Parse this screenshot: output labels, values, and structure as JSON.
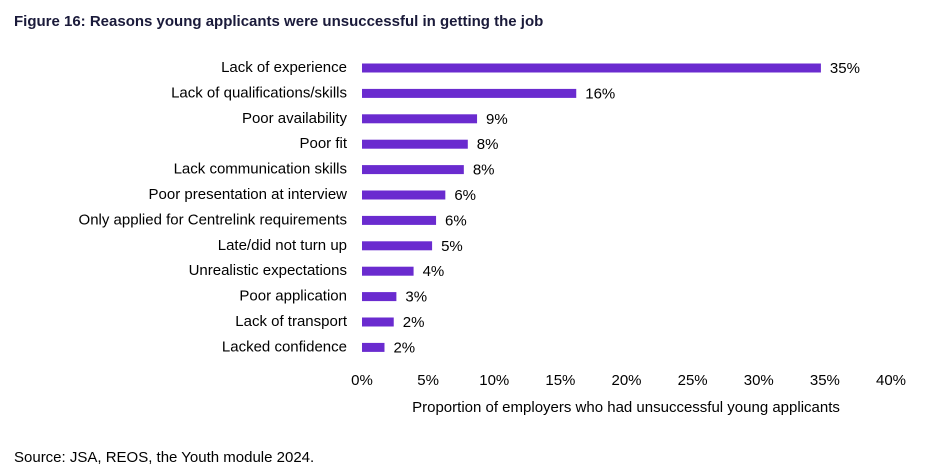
{
  "chart_data": {
    "type": "bar",
    "orientation": "horizontal",
    "title": "Figure 16: Reasons young applicants were unsuccessful in getting the job",
    "categories": [
      "Lack of experience",
      "Lack of qualifications/skills",
      "Poor availability",
      "Poor fit",
      "Lack communication skills",
      "Poor presentation at interview",
      "Only applied for Centrelink requirements",
      "Late/did not turn up",
      "Unrealistic expectations",
      "Poor application",
      "Lack of transport",
      "Lacked confidence"
    ],
    "values": [
      34.7,
      16.2,
      8.7,
      8.0,
      7.7,
      6.3,
      5.6,
      5.3,
      3.9,
      2.6,
      2.4,
      1.7
    ],
    "value_labels": [
      "35%",
      "16%",
      "9%",
      "8%",
      "8%",
      "6%",
      "6%",
      "5%",
      "4%",
      "3%",
      "2%",
      "2%"
    ],
    "color": "#6a2bcf",
    "xlim": [
      0,
      40
    ],
    "xticks": [
      {
        "value": 0,
        "label": "0%"
      },
      {
        "value": 5,
        "label": "5%"
      },
      {
        "value": 10,
        "label": "10%"
      },
      {
        "value": 15,
        "label": "15%"
      },
      {
        "value": 20,
        "label": "20%"
      },
      {
        "value": 25,
        "label": "25%"
      },
      {
        "value": 30,
        "label": "30%"
      },
      {
        "value": 35,
        "label": "35%"
      },
      {
        "value": 40,
        "label": "40%"
      }
    ],
    "xlabel": "Proportion of employers who had unsuccessful young applicants",
    "grid": false,
    "source": "Source: JSA, REOS, the Youth module 2024."
  }
}
